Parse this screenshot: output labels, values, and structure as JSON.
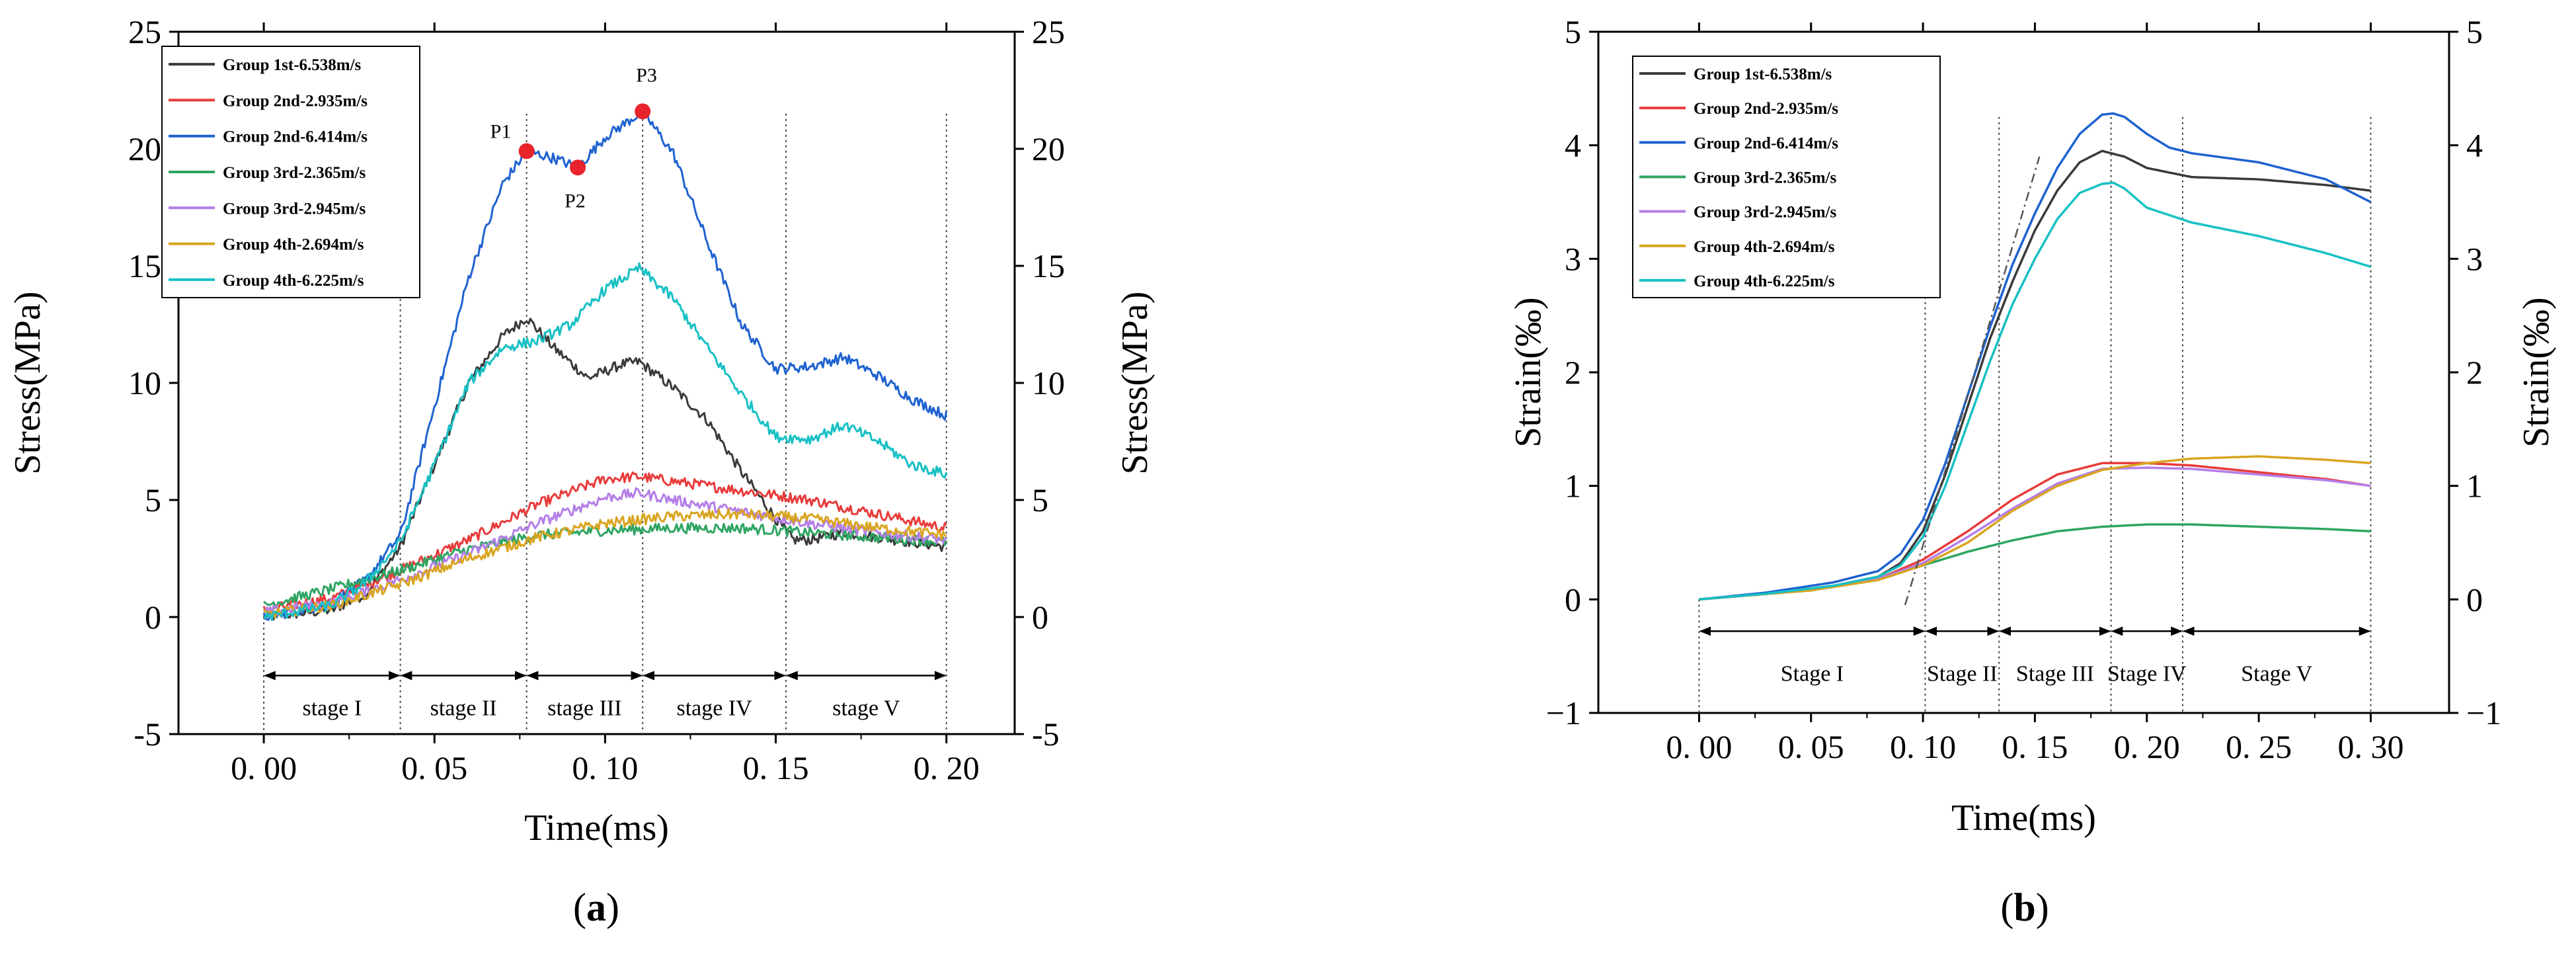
{
  "chart_data": [
    {
      "type": "line",
      "caption_open": "(",
      "caption": "a",
      "caption_close": ")",
      "xlabel": "Time(ms)",
      "ylabel": "Stress(MPa)",
      "ylabel_right": "Stress(MPa)",
      "xlim": [
        -0.025,
        0.22
      ],
      "ylim": [
        -5,
        25
      ],
      "xticks": [
        0,
        0.05,
        0.1,
        0.15,
        0.2
      ],
      "xtick_labels": [
        "0. 00",
        "0. 05",
        "0. 10",
        "0. 15",
        "0. 20"
      ],
      "yticks": [
        -5,
        0,
        5,
        10,
        15,
        20,
        25
      ],
      "ytick_labels": [
        "-5",
        "0",
        "5",
        "10",
        "15",
        "20",
        "25"
      ],
      "grid": false,
      "legend_position": "top-left",
      "noisy": true,
      "series": [
        {
          "name": "Group 1st-6.538m/s",
          "color": "#3a3a3a",
          "x": [
            0,
            0.02,
            0.03,
            0.04,
            0.05,
            0.06,
            0.07,
            0.077,
            0.085,
            0.095,
            0.105,
            0.11,
            0.12,
            0.13,
            0.14,
            0.15,
            0.155,
            0.16,
            0.17,
            0.18,
            0.19,
            0.2
          ],
          "y": [
            0,
            0.3,
            1.0,
            3.0,
            6.5,
            10.0,
            12.0,
            12.8,
            11.5,
            10.2,
            10.8,
            10.9,
            9.8,
            8.4,
            6.2,
            4.2,
            3.3,
            3.3,
            3.6,
            3.4,
            3.2,
            3.0
          ]
        },
        {
          "name": "Group 2nd-2.935m/s",
          "color": "#e83b3b",
          "x": [
            0,
            0.02,
            0.04,
            0.06,
            0.08,
            0.1,
            0.11,
            0.12,
            0.14,
            0.16,
            0.18,
            0.2
          ],
          "y": [
            0.3,
            0.8,
            2.0,
            3.3,
            4.8,
            5.9,
            6.0,
            5.8,
            5.4,
            5.0,
            4.4,
            3.8
          ]
        },
        {
          "name": "Group 2nd-6.414m/s",
          "color": "#1e62d0",
          "x": [
            0,
            0.02,
            0.03,
            0.04,
            0.05,
            0.06,
            0.07,
            0.077,
            0.085,
            0.092,
            0.1,
            0.111,
            0.12,
            0.13,
            0.14,
            0.15,
            0.16,
            0.17,
            0.18,
            0.19,
            0.2
          ],
          "y": [
            0,
            0.6,
            1.6,
            3.5,
            9.0,
            14.5,
            18.5,
            19.9,
            19.6,
            19.2,
            20.5,
            21.6,
            19.8,
            16.0,
            12.5,
            10.6,
            10.7,
            11.1,
            10.3,
            9.3,
            8.6
          ]
        },
        {
          "name": "Group 3rd-2.365m/s",
          "color": "#2ea562",
          "x": [
            0,
            0.02,
            0.04,
            0.06,
            0.08,
            0.1,
            0.12,
            0.14,
            0.16,
            0.18,
            0.2
          ],
          "y": [
            0.5,
            1.2,
            2.0,
            2.9,
            3.5,
            3.7,
            3.8,
            3.8,
            3.6,
            3.4,
            3.2
          ]
        },
        {
          "name": "Group 3rd-2.945m/s",
          "color": "#b47ee8",
          "x": [
            0,
            0.02,
            0.04,
            0.06,
            0.08,
            0.1,
            0.11,
            0.12,
            0.14,
            0.16,
            0.18,
            0.2
          ],
          "y": [
            0.2,
            0.6,
            1.6,
            2.7,
            4.0,
            5.1,
            5.3,
            5.0,
            4.5,
            4.0,
            3.6,
            3.3
          ]
        },
        {
          "name": "Group 4th-2.694m/s",
          "color": "#d9a520",
          "x": [
            0,
            0.02,
            0.04,
            0.06,
            0.08,
            0.1,
            0.12,
            0.14,
            0.16,
            0.18,
            0.2
          ],
          "y": [
            0.1,
            0.5,
            1.4,
            2.5,
            3.4,
            4.0,
            4.3,
            4.4,
            4.2,
            3.8,
            3.5
          ]
        },
        {
          "name": "Group 4th-6.225m/s",
          "color": "#17c0c4",
          "x": [
            0,
            0.02,
            0.03,
            0.04,
            0.05,
            0.06,
            0.07,
            0.08,
            0.09,
            0.1,
            0.11,
            0.12,
            0.13,
            0.14,
            0.15,
            0.16,
            0.17,
            0.18,
            0.19,
            0.2
          ],
          "y": [
            0,
            0.5,
            1.5,
            3.2,
            6.5,
            10.0,
            11.5,
            11.8,
            12.5,
            14.0,
            14.9,
            13.6,
            11.5,
            9.5,
            7.7,
            7.6,
            8.2,
            7.5,
            6.5,
            6.1
          ]
        }
      ],
      "markers": [
        {
          "label": "P1",
          "x": 0.077,
          "y": 19.9,
          "color": "#e8232b"
        },
        {
          "label": "P2",
          "x": 0.092,
          "y": 19.2,
          "color": "#e8232b"
        },
        {
          "label": "P3",
          "x": 0.111,
          "y": 21.6,
          "color": "#e8232b"
        }
      ],
      "dotted_lines_x": [
        0.04,
        0.077,
        0.111,
        0.153,
        0.2
      ],
      "stages": [
        {
          "label": "stage I",
          "x0": 0,
          "x1": 0.04
        },
        {
          "label": "stage II",
          "x0": 0.04,
          "x1": 0.077
        },
        {
          "label": "stage III",
          "x0": 0.077,
          "x1": 0.111
        },
        {
          "label": "stage IV",
          "x0": 0.111,
          "x1": 0.153
        },
        {
          "label": "stage V",
          "x0": 0.153,
          "x1": 0.2
        }
      ],
      "stage_arrow_y": -2.5
    },
    {
      "type": "line",
      "caption_open": "(",
      "caption": "b",
      "caption_close": ")",
      "xlabel": "Time(ms)",
      "ylabel": "Strain(‰)",
      "ylabel_right": "Strain(‰)",
      "xlim": [
        -0.045,
        0.335
      ],
      "ylim": [
        -1,
        5
      ],
      "xticks": [
        0,
        0.05,
        0.1,
        0.15,
        0.2,
        0.25,
        0.3
      ],
      "xtick_labels": [
        "0. 00",
        "0. 05",
        "0. 10",
        "0. 15",
        "0. 20",
        "0. 25",
        "0. 30"
      ],
      "yticks": [
        -1,
        0,
        1,
        2,
        3,
        4,
        5
      ],
      "ytick_labels": [
        "−1",
        "0",
        "1",
        "2",
        "3",
        "4",
        "5"
      ],
      "grid": false,
      "legend_position": "top-left",
      "noisy": false,
      "series": [
        {
          "name": "Group 1st-6.538m/s",
          "color": "#3a3a3a",
          "x": [
            0,
            0.03,
            0.06,
            0.08,
            0.09,
            0.1,
            0.11,
            0.12,
            0.13,
            0.14,
            0.15,
            0.16,
            0.17,
            0.18,
            0.19,
            0.2,
            0.22,
            0.25,
            0.28,
            0.3
          ],
          "y": [
            0,
            0.05,
            0.12,
            0.2,
            0.32,
            0.6,
            1.1,
            1.7,
            2.3,
            2.8,
            3.25,
            3.6,
            3.85,
            3.95,
            3.9,
            3.8,
            3.72,
            3.7,
            3.65,
            3.6
          ]
        },
        {
          "name": "Group 2nd-2.935m/s",
          "color": "#e83b3b",
          "x": [
            0,
            0.05,
            0.08,
            0.1,
            0.12,
            0.14,
            0.16,
            0.18,
            0.2,
            0.22,
            0.25,
            0.28,
            0.3
          ],
          "y": [
            0,
            0.08,
            0.18,
            0.35,
            0.6,
            0.88,
            1.1,
            1.2,
            1.2,
            1.18,
            1.12,
            1.06,
            1.0
          ]
        },
        {
          "name": "Group 2nd-6.414m/s",
          "color": "#1e62d0",
          "x": [
            0,
            0.03,
            0.06,
            0.08,
            0.09,
            0.1,
            0.11,
            0.12,
            0.13,
            0.14,
            0.15,
            0.16,
            0.17,
            0.18,
            0.185,
            0.19,
            0.2,
            0.21,
            0.22,
            0.25,
            0.28,
            0.3
          ],
          "y": [
            0,
            0.06,
            0.15,
            0.25,
            0.4,
            0.7,
            1.2,
            1.8,
            2.4,
            2.95,
            3.4,
            3.8,
            4.1,
            4.27,
            4.28,
            4.25,
            4.1,
            3.98,
            3.93,
            3.85,
            3.7,
            3.5
          ]
        },
        {
          "name": "Group 3rd-2.365m/s",
          "color": "#2ea562",
          "x": [
            0,
            0.05,
            0.08,
            0.1,
            0.12,
            0.14,
            0.16,
            0.18,
            0.2,
            0.22,
            0.25,
            0.28,
            0.3
          ],
          "y": [
            0,
            0.08,
            0.18,
            0.3,
            0.42,
            0.52,
            0.6,
            0.64,
            0.66,
            0.66,
            0.64,
            0.62,
            0.6
          ]
        },
        {
          "name": "Group 3rd-2.945m/s",
          "color": "#b47ee8",
          "x": [
            0,
            0.05,
            0.08,
            0.1,
            0.12,
            0.14,
            0.16,
            0.18,
            0.2,
            0.22,
            0.25,
            0.28,
            0.3
          ],
          "y": [
            0,
            0.08,
            0.18,
            0.32,
            0.55,
            0.8,
            1.02,
            1.15,
            1.16,
            1.15,
            1.1,
            1.05,
            1.0
          ]
        },
        {
          "name": "Group 4th-2.694m/s",
          "color": "#d9a520",
          "x": [
            0,
            0.05,
            0.08,
            0.1,
            0.12,
            0.14,
            0.16,
            0.18,
            0.2,
            0.22,
            0.25,
            0.28,
            0.3
          ],
          "y": [
            0,
            0.08,
            0.17,
            0.3,
            0.5,
            0.78,
            1.0,
            1.14,
            1.2,
            1.24,
            1.26,
            1.23,
            1.2
          ]
        },
        {
          "name": "Group 4th-6.225m/s",
          "color": "#17c0c4",
          "x": [
            0,
            0.03,
            0.06,
            0.08,
            0.09,
            0.1,
            0.11,
            0.12,
            0.13,
            0.14,
            0.15,
            0.16,
            0.17,
            0.18,
            0.185,
            0.19,
            0.2,
            0.22,
            0.25,
            0.28,
            0.3
          ],
          "y": [
            0,
            0.05,
            0.12,
            0.2,
            0.3,
            0.55,
            1.0,
            1.55,
            2.1,
            2.6,
            3.0,
            3.35,
            3.58,
            3.66,
            3.67,
            3.62,
            3.45,
            3.32,
            3.2,
            3.05,
            2.93
          ]
        }
      ],
      "dashdot_line": {
        "x0": 0.092,
        "y0": -0.05,
        "x1": 0.152,
        "y1": 3.9,
        "color": "#555555"
      },
      "dotted_lines_x": [
        0.101,
        0.134,
        0.184,
        0.216,
        0.3
      ],
      "stages": [
        {
          "label": "Stage I",
          "x0": 0,
          "x1": 0.101
        },
        {
          "label": "Stage II",
          "x0": 0.101,
          "x1": 0.134
        },
        {
          "label": "Stage III",
          "x0": 0.134,
          "x1": 0.184
        },
        {
          "label": "Stage IV",
          "x0": 0.184,
          "x1": 0.216
        },
        {
          "label": "Stage V",
          "x0": 0.216,
          "x1": 0.3
        }
      ],
      "stage_arrow_y": -0.28
    }
  ]
}
